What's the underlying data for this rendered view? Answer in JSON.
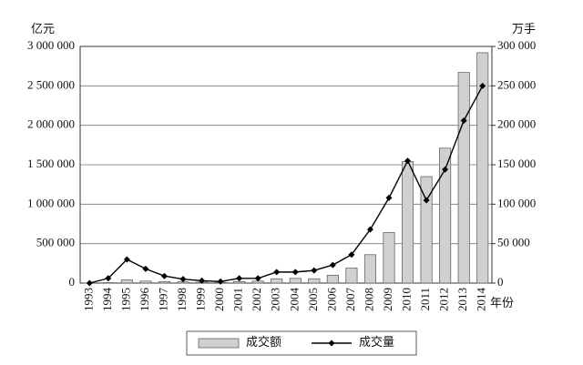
{
  "chart_data": {
    "type": "bar-line",
    "ylabel": "亿元",
    "y2label": "万手",
    "xlabel": "年份",
    "categories": [
      "1993",
      "1994",
      "1995",
      "1996",
      "1997",
      "1998",
      "1999",
      "2000",
      "2001",
      "2002",
      "2003",
      "2004",
      "2005",
      "2006",
      "2007",
      "2008",
      "2009",
      "2010",
      "2011",
      "2012",
      "2013",
      "2014"
    ],
    "series": [
      {
        "name": "成交额",
        "type": "bar",
        "color": "#d0d0d0",
        "axis": "y",
        "values": [
          1000,
          5000,
          40000,
          25000,
          20000,
          15000,
          12000,
          10000,
          20000,
          25000,
          55000,
          60000,
          55000,
          100000,
          190000,
          360000,
          640000,
          1540000,
          1350000,
          1710000,
          2670000,
          2920000
        ]
      },
      {
        "name": "成交量",
        "type": "line",
        "color": "#000000",
        "axis": "y2",
        "values": [
          0,
          6000,
          30000,
          18000,
          9000,
          5000,
          3000,
          2000,
          6000,
          6000,
          14000,
          14000,
          16000,
          23000,
          36000,
          68000,
          108000,
          155000,
          105000,
          144000,
          206000,
          250000
        ]
      }
    ],
    "ylim": [
      0,
      3000000
    ],
    "yticks": [
      0,
      {
        "value": 500000,
        "label": "500 000"
      },
      {
        "value": 1000000,
        "label": "1 000 000"
      },
      {
        "value": 1500000,
        "label": "1 500 000"
      },
      {
        "value": 2000000,
        "label": "2 000 000"
      },
      {
        "value": 2500000,
        "label": "2 500 000"
      },
      {
        "value": 3000000,
        "label": "3 000 000"
      }
    ],
    "y2lim": [
      0,
      300000
    ],
    "y2ticks": [
      0,
      {
        "value": 50000,
        "label": "50 000"
      },
      {
        "value": 100000,
        "label": "100 000"
      },
      {
        "value": 150000,
        "label": "150 000"
      },
      {
        "value": 200000,
        "label": "200 000"
      },
      {
        "value": 250000,
        "label": "250 000"
      },
      {
        "value": 300000,
        "label": "300 000"
      }
    ],
    "grid": true,
    "legend": "bottom"
  }
}
